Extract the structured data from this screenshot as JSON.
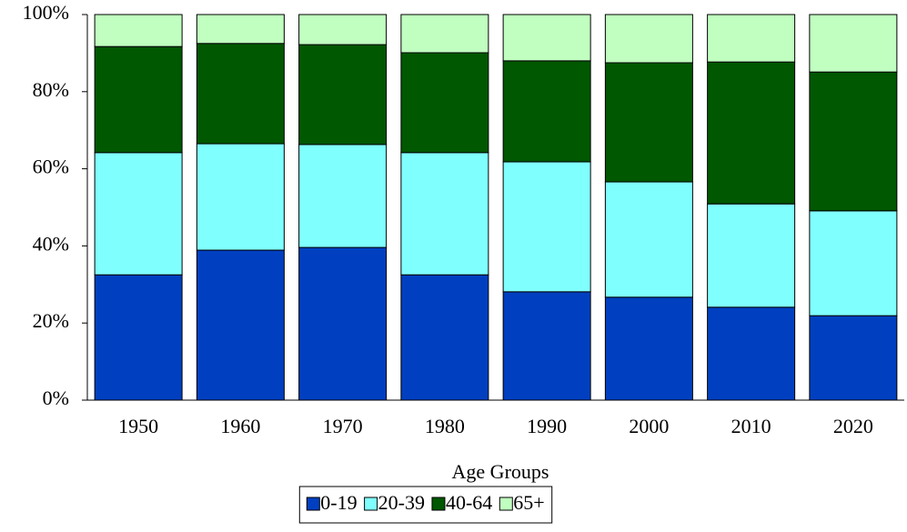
{
  "chart_data": {
    "type": "stacked_bar",
    "x_label": "Age Groups",
    "categories": [
      "1950",
      "1960",
      "1970",
      "1980",
      "1990",
      "2000",
      "2010",
      "2020"
    ],
    "series": [
      {
        "name": "0-19",
        "color": "#0040c0",
        "values": [
          32.5,
          38.9,
          39.6,
          32.5,
          28.1,
          26.7,
          24.1,
          21.9
        ]
      },
      {
        "name": "20-39",
        "color": "#80ffff",
        "values": [
          31.7,
          27.6,
          26.7,
          31.7,
          33.7,
          29.9,
          26.8,
          27.2
        ]
      },
      {
        "name": "40-64",
        "color": "#005800",
        "values": [
          27.5,
          26.0,
          25.9,
          25.9,
          26.2,
          30.9,
          36.8,
          36.0
        ]
      },
      {
        "name": "65+",
        "color": "#c0ffc0",
        "values": [
          8.3,
          7.5,
          7.8,
          9.9,
          12.0,
          12.5,
          12.3,
          14.9
        ]
      }
    ],
    "ylim": [
      0,
      100
    ],
    "yticks": [
      {
        "value": 0,
        "label": "0%"
      },
      {
        "value": 20,
        "label": "20%"
      },
      {
        "value": 40,
        "label": "40%"
      },
      {
        "value": 60,
        "label": "60%"
      },
      {
        "value": 80,
        "label": "80%"
      },
      {
        "value": 100,
        "label": "100%"
      }
    ],
    "legend": "bottom"
  }
}
